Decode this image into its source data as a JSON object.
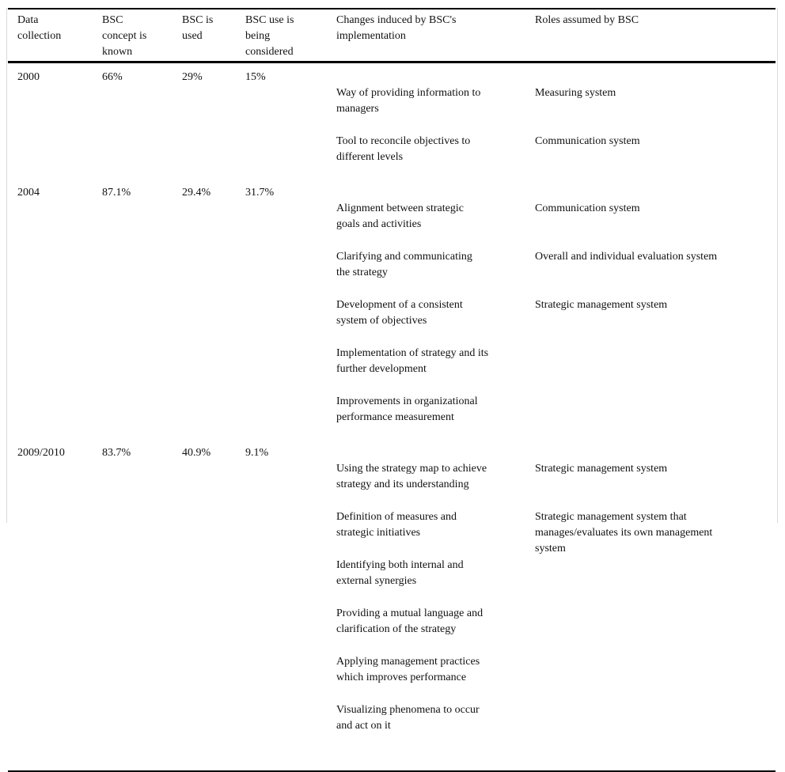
{
  "colors": {
    "rule": "#000000",
    "side_frame": "#d9d9d9",
    "text": "#111111",
    "background": "#ffffff"
  },
  "table": {
    "headers": {
      "data_collection": "Data\ncollection",
      "concept_known": "BSC\nconcept is\nknown",
      "is_used": "BSC is\nused",
      "use_considered": "BSC use is\nbeing\nconsidered",
      "changes": "Changes induced by BSC's\nimplementation",
      "roles": "Roles assumed by BSC"
    },
    "rows": [
      {
        "year": "2000",
        "known": "66%",
        "used": "29%",
        "considered": "15%",
        "items": [
          {
            "change": "Way of providing information to\nmanagers",
            "role": "Measuring system"
          },
          {
            "change": "Tool to reconcile objectives to\ndifferent levels",
            "role": "Communication system"
          }
        ]
      },
      {
        "year": "2004",
        "known": "87.1%",
        "used": "29.4%",
        "considered": "31.7%",
        "items": [
          {
            "change": "Alignment between strategic\ngoals and activities",
            "role": "Communication system"
          },
          {
            "change": "Clarifying and communicating\nthe strategy",
            "role": "Overall and individual evaluation system"
          },
          {
            "change": "Development of a consistent\nsystem of objectives",
            "role": "Strategic management system"
          },
          {
            "change": "Implementation of strategy and its\nfurther development",
            "role": ""
          },
          {
            "change": "Improvements in organizational\nperformance measurement",
            "role": ""
          }
        ]
      },
      {
        "year": "2009/2010",
        "known": "83.7%",
        "used": "40.9%",
        "considered": "9.1%",
        "items": [
          {
            "change": "Using the strategy map to achieve\nstrategy and its understanding",
            "role": "Strategic management system"
          },
          {
            "change": "Definition of measures and\nstrategic initiatives",
            "role": "Strategic management system that\nmanages/evaluates its own management\nsystem"
          },
          {
            "change": "Identifying both internal and\nexternal synergies",
            "role": ""
          },
          {
            "change": "Providing a mutual language and\nclarification of the strategy",
            "role": ""
          },
          {
            "change": "Applying management practices\nwhich improves performance",
            "role": ""
          },
          {
            "change": "Visualizing phenomena to occur\nand act on it",
            "role": ""
          }
        ]
      }
    ]
  }
}
